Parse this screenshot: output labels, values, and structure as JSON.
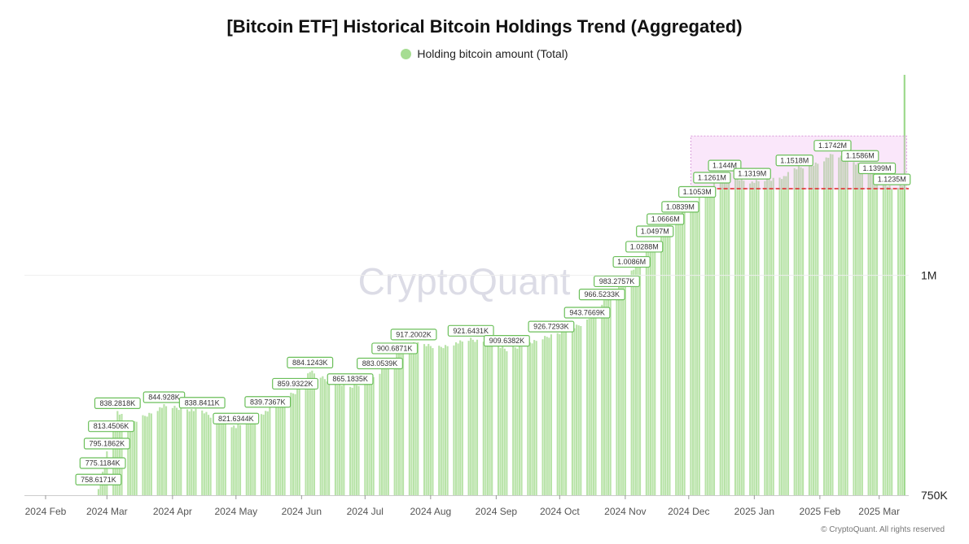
{
  "colors": {
    "bar": "#b8e3a8",
    "bar_spike": "#9bd88a",
    "label_border": "#6bbf5a",
    "label_text": "#333333",
    "dash": "#e03030",
    "highlight_fill": "rgba(238,170,238,0.28)",
    "highlight_stroke": "#d99ad9",
    "watermark": "#dcdce6",
    "legend_dot": "#a6dd92"
  },
  "watermark": "CryptoQuant",
  "footer": "© CryptoQuant. All rights reserved",
  "chart_data": {
    "type": "bar",
    "title": "[Bitcoin ETF] Historical Bitcoin Holdings Trend (Aggregated)",
    "legend": [
      "Holding bitcoin amount (Total)"
    ],
    "legend_position": "top-center",
    "ylim": [
      750000,
      1300000
    ],
    "y_scale": "log",
    "y_axis_side": "right",
    "y_ticks": [
      {
        "value": 1000000,
        "label": "1M"
      },
      {
        "value": 750000,
        "label": "750K"
      }
    ],
    "x_range": [
      "2024-01-22",
      "2025-03-15"
    ],
    "x_ticks": [
      {
        "date": "2024-02-01",
        "label": "2024 Feb"
      },
      {
        "date": "2024-03-01",
        "label": "2024 Mar"
      },
      {
        "date": "2024-04-01",
        "label": "2024 Apr"
      },
      {
        "date": "2024-05-01",
        "label": "2024 May"
      },
      {
        "date": "2024-06-01",
        "label": "2024 Jun"
      },
      {
        "date": "2024-07-01",
        "label": "2024 Jul"
      },
      {
        "date": "2024-08-01",
        "label": "2024 Aug"
      },
      {
        "date": "2024-09-01",
        "label": "2024 Sep"
      },
      {
        "date": "2024-10-01",
        "label": "2024 Oct"
      },
      {
        "date": "2024-11-01",
        "label": "2024 Nov"
      },
      {
        "date": "2024-12-01",
        "label": "2024 Dec"
      },
      {
        "date": "2025-01-01",
        "label": "2025 Jan"
      },
      {
        "date": "2025-02-01",
        "label": "2025 Feb"
      },
      {
        "date": "2025-03-01",
        "label": "2025 Mar"
      }
    ],
    "gridlines": [
      1000000
    ],
    "anchors": [
      [
        "2024-02-26",
        758617
      ],
      [
        "2024-02-28",
        775118
      ],
      [
        "2024-03-01",
        795186
      ],
      [
        "2024-03-03",
        813451
      ],
      [
        "2024-03-06",
        838282
      ],
      [
        "2024-03-12",
        826000
      ],
      [
        "2024-03-20",
        835000
      ],
      [
        "2024-03-28",
        844928
      ],
      [
        "2024-04-05",
        842000
      ],
      [
        "2024-04-15",
        838841
      ],
      [
        "2024-04-22",
        830000
      ],
      [
        "2024-05-01",
        821634
      ],
      [
        "2024-05-10",
        832000
      ],
      [
        "2024-05-16",
        839737
      ],
      [
        "2024-05-22",
        852000
      ],
      [
        "2024-05-29",
        859932
      ],
      [
        "2024-06-05",
        884124
      ],
      [
        "2024-06-12",
        875000
      ],
      [
        "2024-06-24",
        865184
      ],
      [
        "2024-07-01",
        872000
      ],
      [
        "2024-07-08",
        883054
      ],
      [
        "2024-07-15",
        900687
      ],
      [
        "2024-07-24",
        917200
      ],
      [
        "2024-08-05",
        912000
      ],
      [
        "2024-08-20",
        921643
      ],
      [
        "2024-08-28",
        918000
      ],
      [
        "2024-09-06",
        909638
      ],
      [
        "2024-09-15",
        915000
      ],
      [
        "2024-09-27",
        926729
      ],
      [
        "2024-10-07",
        935000
      ],
      [
        "2024-10-14",
        943767
      ],
      [
        "2024-10-21",
        966523
      ],
      [
        "2024-10-28",
        983276
      ],
      [
        "2024-11-04",
        1008600
      ],
      [
        "2024-11-10",
        1028800
      ],
      [
        "2024-11-15",
        1049700
      ],
      [
        "2024-11-20",
        1066600
      ],
      [
        "2024-11-27",
        1083900
      ],
      [
        "2024-12-05",
        1105300
      ],
      [
        "2024-12-12",
        1126100
      ],
      [
        "2024-12-18",
        1144000
      ],
      [
        "2024-12-31",
        1131900
      ],
      [
        "2025-01-15",
        1140000
      ],
      [
        "2025-01-20",
        1151800
      ],
      [
        "2025-02-01",
        1162000
      ],
      [
        "2025-02-07",
        1174200
      ],
      [
        "2025-02-14",
        1166000
      ],
      [
        "2025-02-20",
        1158600
      ],
      [
        "2025-02-28",
        1139900
      ],
      [
        "2025-03-07",
        1123500
      ],
      [
        "2025-03-12",
        1128000
      ],
      [
        "2025-03-13",
        1300000
      ]
    ],
    "annotations": [
      {
        "date": "2024-02-26",
        "value": 758617,
        "label": "758.6171K"
      },
      {
        "date": "2024-02-28",
        "value": 775118,
        "label": "775.1184K"
      },
      {
        "date": "2024-03-01",
        "value": 795186,
        "label": "795.1862K"
      },
      {
        "date": "2024-03-03",
        "value": 813451,
        "label": "813.4506K"
      },
      {
        "date": "2024-03-06",
        "value": 838282,
        "label": "838.2818K"
      },
      {
        "date": "2024-03-28",
        "value": 844928,
        "label": "844.928K"
      },
      {
        "date": "2024-04-15",
        "value": 838841,
        "label": "838.8411K"
      },
      {
        "date": "2024-05-01",
        "value": 821634,
        "label": "821.6344K"
      },
      {
        "date": "2024-05-16",
        "value": 839737,
        "label": "839.7367K"
      },
      {
        "date": "2024-05-29",
        "value": 859932,
        "label": "859.9322K"
      },
      {
        "date": "2024-06-05",
        "value": 884124,
        "label": "884.1243K"
      },
      {
        "date": "2024-06-24",
        "value": 865184,
        "label": "865.1835K"
      },
      {
        "date": "2024-07-08",
        "value": 883054,
        "label": "883.0539K"
      },
      {
        "date": "2024-07-15",
        "value": 900687,
        "label": "900.6871K"
      },
      {
        "date": "2024-07-24",
        "value": 917200,
        "label": "917.2002K"
      },
      {
        "date": "2024-08-20",
        "value": 921643,
        "label": "921.6431K"
      },
      {
        "date": "2024-09-06",
        "value": 909638,
        "label": "909.6382K"
      },
      {
        "date": "2024-09-27",
        "value": 926729,
        "label": "926.7293K"
      },
      {
        "date": "2024-10-14",
        "value": 943767,
        "label": "943.7669K"
      },
      {
        "date": "2024-10-21",
        "value": 966523,
        "label": "966.5233K"
      },
      {
        "date": "2024-10-28",
        "value": 983276,
        "label": "983.2757K"
      },
      {
        "date": "2024-11-04",
        "value": 1008600,
        "label": "1.0086M"
      },
      {
        "date": "2024-11-10",
        "value": 1028800,
        "label": "1.0288M"
      },
      {
        "date": "2024-11-15",
        "value": 1049700,
        "label": "1.0497M"
      },
      {
        "date": "2024-11-20",
        "value": 1066600,
        "label": "1.0666M"
      },
      {
        "date": "2024-11-27",
        "value": 1083900,
        "label": "1.0839M"
      },
      {
        "date": "2024-12-05",
        "value": 1105300,
        "label": "1.1053M"
      },
      {
        "date": "2024-12-12",
        "value": 1126100,
        "label": "1.1261M"
      },
      {
        "date": "2024-12-18",
        "value": 1144000,
        "label": "1.144M"
      },
      {
        "date": "2024-12-31",
        "value": 1131900,
        "label": "1.1319M"
      },
      {
        "date": "2025-01-20",
        "value": 1151800,
        "label": "1.1518M"
      },
      {
        "date": "2025-02-07",
        "value": 1174200,
        "label": "1.1742M"
      },
      {
        "date": "2025-02-20",
        "value": 1158600,
        "label": "1.1586M"
      },
      {
        "date": "2025-02-28",
        "value": 1139900,
        "label": "1.1399M"
      },
      {
        "date": "2025-03-07",
        "value": 1123500,
        "label": "1.1235M"
      }
    ],
    "reference_line": {
      "value": 1120000,
      "style": "dashed",
      "from": "2024-11-29",
      "to": "2025-03-15"
    },
    "highlight_region": {
      "from": "2024-12-02",
      "to": "2025-03-14",
      "ymin": 1120000,
      "ymax": 1200000
    }
  }
}
